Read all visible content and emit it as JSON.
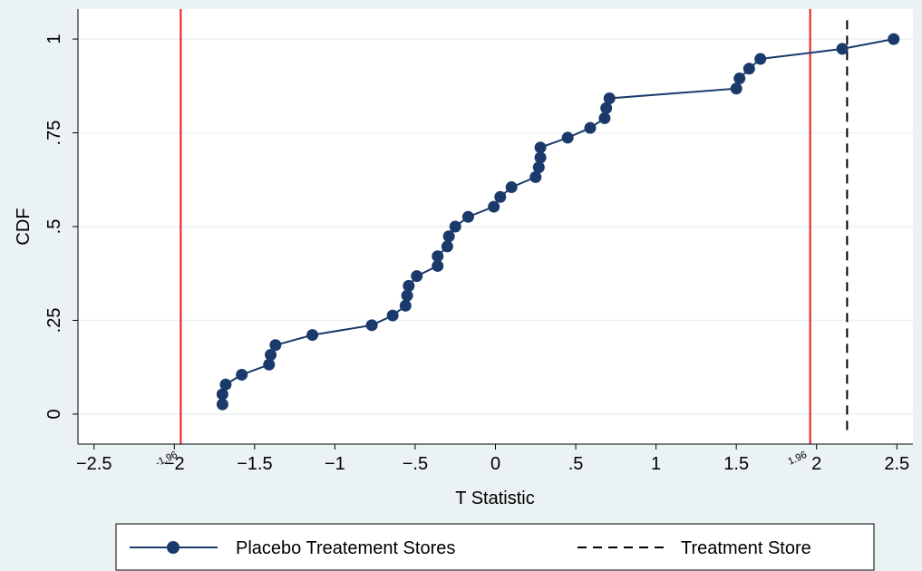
{
  "chart_data": {
    "type": "line",
    "xlabel": "T Statistic",
    "ylabel": "CDF",
    "xlim": [
      -2.6,
      2.6
    ],
    "ylim": [
      -0.08,
      1.08
    ],
    "x_ticks": [
      {
        "value": -2.5,
        "label": "−2.5"
      },
      {
        "value": -2.0,
        "label": "−2"
      },
      {
        "value": -1.5,
        "label": "−1.5"
      },
      {
        "value": -1.0,
        "label": "−1"
      },
      {
        "value": -0.5,
        "label": "−.5"
      },
      {
        "value": 0.0,
        "label": "0"
      },
      {
        "value": 0.5,
        "label": ".5"
      },
      {
        "value": 1.0,
        "label": "1"
      },
      {
        "value": 1.5,
        "label": "1.5"
      },
      {
        "value": 2.0,
        "label": "2"
      },
      {
        "value": 2.5,
        "label": "2.5"
      }
    ],
    "y_ticks": [
      {
        "value": 0,
        "label": "0"
      },
      {
        "value": 0.25,
        "label": ".25"
      },
      {
        "value": 0.5,
        "label": ".5"
      },
      {
        "value": 0.75,
        "label": ".75"
      },
      {
        "value": 1,
        "label": "1"
      }
    ],
    "grid": "horizontal",
    "legend_position": "bottom",
    "series": [
      {
        "name": "Placebo Treatement Stores",
        "style": "line-with-markers",
        "color": "#1a3a6b",
        "points": [
          [
            -1.7,
            0.026
          ],
          [
            -1.7,
            0.053
          ],
          [
            -1.68,
            0.079
          ],
          [
            -1.58,
            0.105
          ],
          [
            -1.41,
            0.132
          ],
          [
            -1.4,
            0.158
          ],
          [
            -1.37,
            0.184
          ],
          [
            -1.14,
            0.211
          ],
          [
            -0.77,
            0.237
          ],
          [
            -0.64,
            0.263
          ],
          [
            -0.56,
            0.289
          ],
          [
            -0.55,
            0.316
          ],
          [
            -0.54,
            0.342
          ],
          [
            -0.49,
            0.368
          ],
          [
            -0.36,
            0.395
          ],
          [
            -0.36,
            0.421
          ],
          [
            -0.3,
            0.447
          ],
          [
            -0.29,
            0.474
          ],
          [
            -0.25,
            0.5
          ],
          [
            -0.17,
            0.526
          ],
          [
            -0.01,
            0.553
          ],
          [
            0.03,
            0.579
          ],
          [
            0.1,
            0.605
          ],
          [
            0.25,
            0.632
          ],
          [
            0.27,
            0.658
          ],
          [
            0.28,
            0.684
          ],
          [
            0.28,
            0.711
          ],
          [
            0.45,
            0.737
          ],
          [
            0.59,
            0.763
          ],
          [
            0.68,
            0.789
          ],
          [
            0.69,
            0.816
          ],
          [
            0.71,
            0.842
          ],
          [
            1.5,
            0.868
          ],
          [
            1.52,
            0.895
          ],
          [
            1.58,
            0.921
          ],
          [
            1.65,
            0.947
          ],
          [
            2.16,
            0.974
          ],
          [
            2.48,
            1.0
          ]
        ]
      },
      {
        "name": "Treatment Store",
        "style": "dashed-vertical",
        "color": "#000000",
        "x": 2.19,
        "y_range": [
          -0.05,
          1.05
        ]
      }
    ],
    "reference_lines": [
      {
        "x": -1.96,
        "label": "-1.96",
        "color": "#e31a1c"
      },
      {
        "x": 1.96,
        "label": "1.96",
        "color": "#e31a1c"
      }
    ]
  }
}
